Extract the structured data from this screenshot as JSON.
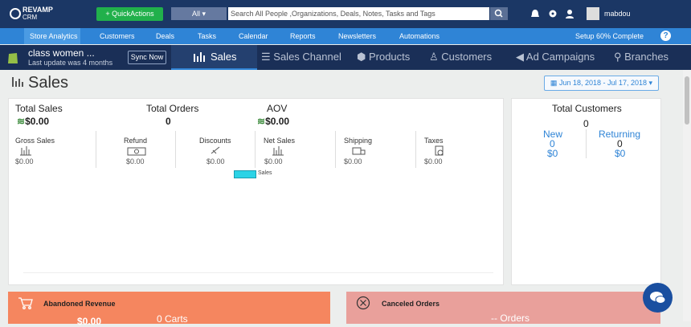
{
  "topbar": {
    "logo": "REVAMP",
    "logo_sub": "CRM",
    "quick_actions": "QuickActions",
    "search_scope": "All",
    "search_placeholder": "Search All People ,Organizations, Deals, Notes, Tasks and Tags",
    "user": "mabdou"
  },
  "nav": {
    "items": [
      "Store Analytics",
      "Customers",
      "Deals",
      "Tasks",
      "Calendar",
      "Reports",
      "Newsletters",
      "Automations"
    ],
    "setup": "Setup 60% Complete"
  },
  "store": {
    "name": "class women ...",
    "updated": "Last update was 4 months",
    "sync": "Sync Now"
  },
  "tabs": [
    "Sales",
    "Sales Channel",
    "Products",
    "Customers",
    "Ad Campaigns",
    "Branches"
  ],
  "page": {
    "title": "Sales",
    "date_range": "Jun 18, 2018 - Jul 17, 2018"
  },
  "summary": [
    {
      "label": "Total Sales",
      "value": "$0.00"
    },
    {
      "label": "Total Orders",
      "value": "0"
    },
    {
      "label": "AOV",
      "value": "$0.00"
    }
  ],
  "metrics": [
    {
      "label": "Gross Sales",
      "value": "$0.00"
    },
    {
      "label": "Refund",
      "value": "$0.00"
    },
    {
      "label": "Discounts",
      "value": "$0.00"
    },
    {
      "label": "Net Sales",
      "value": "$0.00"
    },
    {
      "label": "Shipping",
      "value": "$0.00"
    },
    {
      "label": "Taxes",
      "value": "$0.00"
    }
  ],
  "legend": "Sales",
  "customers": {
    "title": "Total Customers",
    "total": "0",
    "new": {
      "label": "New",
      "count": "0",
      "value": "$0"
    },
    "returning": {
      "label": "Returning",
      "count": "0",
      "value": "$0"
    }
  },
  "abandoned": {
    "title": "Abandoned Revenue",
    "value": "$0.00",
    "carts": "0 Carts"
  },
  "canceled": {
    "title": "Canceled Orders",
    "orders": "-- Orders"
  }
}
